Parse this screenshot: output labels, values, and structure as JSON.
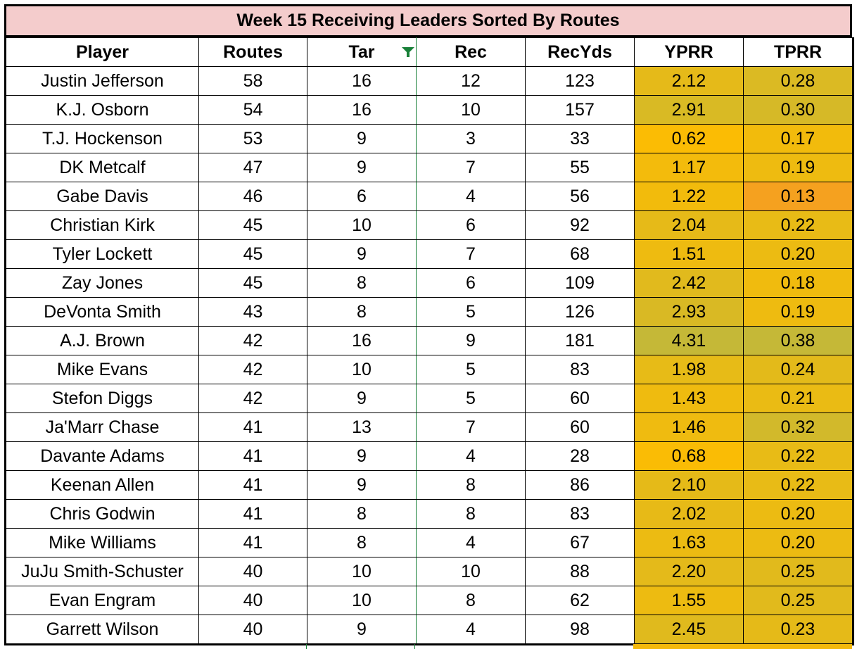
{
  "title": "Week 15 Receiving Leaders Sorted By Routes",
  "columns": [
    "Player",
    "Routes",
    "Tar",
    "Rec",
    "RecYds",
    "YPRR",
    "TPRR"
  ],
  "filter_icon": "filter-icon",
  "colors": {
    "title_bg": "#f4cccc",
    "filter_green": "#188038",
    "heat_low": "#fbbc04",
    "heat_high": "#c5b837",
    "heat_tprr_min": "#f5a11f"
  },
  "rows": [
    {
      "player": "Justin Jefferson",
      "routes": "58",
      "tar": "16",
      "rec": "12",
      "recyds": "123",
      "yprr": "2.12",
      "tprr": "0.28"
    },
    {
      "player": "K.J. Osborn",
      "routes": "54",
      "tar": "16",
      "rec": "10",
      "recyds": "157",
      "yprr": "2.91",
      "tprr": "0.30"
    },
    {
      "player": "T.J. Hockenson",
      "routes": "53",
      "tar": "9",
      "rec": "3",
      "recyds": "33",
      "yprr": "0.62",
      "tprr": "0.17"
    },
    {
      "player": "DK Metcalf",
      "routes": "47",
      "tar": "9",
      "rec": "7",
      "recyds": "55",
      "yprr": "1.17",
      "tprr": "0.19"
    },
    {
      "player": "Gabe Davis",
      "routes": "46",
      "tar": "6",
      "rec": "4",
      "recyds": "56",
      "yprr": "1.22",
      "tprr": "0.13"
    },
    {
      "player": "Christian Kirk",
      "routes": "45",
      "tar": "10",
      "rec": "6",
      "recyds": "92",
      "yprr": "2.04",
      "tprr": "0.22"
    },
    {
      "player": "Tyler Lockett",
      "routes": "45",
      "tar": "9",
      "rec": "7",
      "recyds": "68",
      "yprr": "1.51",
      "tprr": "0.20"
    },
    {
      "player": "Zay Jones",
      "routes": "45",
      "tar": "8",
      "rec": "6",
      "recyds": "109",
      "yprr": "2.42",
      "tprr": "0.18"
    },
    {
      "player": "DeVonta Smith",
      "routes": "43",
      "tar": "8",
      "rec": "5",
      "recyds": "126",
      "yprr": "2.93",
      "tprr": "0.19"
    },
    {
      "player": "A.J. Brown",
      "routes": "42",
      "tar": "16",
      "rec": "9",
      "recyds": "181",
      "yprr": "4.31",
      "tprr": "0.38"
    },
    {
      "player": "Mike Evans",
      "routes": "42",
      "tar": "10",
      "rec": "5",
      "recyds": "83",
      "yprr": "1.98",
      "tprr": "0.24"
    },
    {
      "player": "Stefon Diggs",
      "routes": "42",
      "tar": "9",
      "rec": "5",
      "recyds": "60",
      "yprr": "1.43",
      "tprr": "0.21"
    },
    {
      "player": "Ja'Marr Chase",
      "routes": "41",
      "tar": "13",
      "rec": "7",
      "recyds": "60",
      "yprr": "1.46",
      "tprr": "0.32"
    },
    {
      "player": "Davante Adams",
      "routes": "41",
      "tar": "9",
      "rec": "4",
      "recyds": "28",
      "yprr": "0.68",
      "tprr": "0.22"
    },
    {
      "player": "Keenan Allen",
      "routes": "41",
      "tar": "9",
      "rec": "8",
      "recyds": "86",
      "yprr": "2.10",
      "tprr": "0.22"
    },
    {
      "player": "Chris Godwin",
      "routes": "41",
      "tar": "8",
      "rec": "8",
      "recyds": "83",
      "yprr": "2.02",
      "tprr": "0.20"
    },
    {
      "player": "Mike Williams",
      "routes": "41",
      "tar": "8",
      "rec": "4",
      "recyds": "67",
      "yprr": "1.63",
      "tprr": "0.20"
    },
    {
      "player": "JuJu Smith-Schuster",
      "routes": "40",
      "tar": "10",
      "rec": "10",
      "recyds": "88",
      "yprr": "2.20",
      "tprr": "0.25"
    },
    {
      "player": "Evan Engram",
      "routes": "40",
      "tar": "10",
      "rec": "8",
      "recyds": "62",
      "yprr": "1.55",
      "tprr": "0.25"
    },
    {
      "player": "Garrett Wilson",
      "routes": "40",
      "tar": "9",
      "rec": "4",
      "recyds": "98",
      "yprr": "2.45",
      "tprr": "0.23"
    }
  ]
}
